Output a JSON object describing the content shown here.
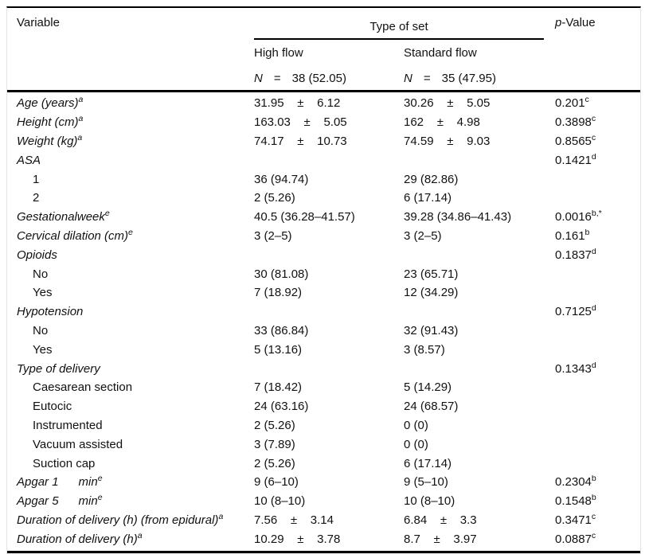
{
  "table": {
    "header": {
      "variable": "Variable",
      "group_title": "Type of set",
      "p_italic": "p",
      "p_rest": "-Value",
      "groups": [
        {
          "title": "High flow",
          "n_label": "N",
          "eq": "=",
          "count": "38 (52.05)"
        },
        {
          "title": "Standard flow",
          "n_label": "N",
          "eq": "=",
          "count": "35 (47.95)"
        }
      ]
    },
    "rows": [
      {
        "label": "Age (years)",
        "sup": "a",
        "italic": true,
        "indent": false,
        "high": "31.95    ±    6.12",
        "std": "30.26    ±    5.05",
        "p": "0.201",
        "psup": "c"
      },
      {
        "label": "Height (cm)",
        "sup": "a",
        "italic": true,
        "indent": false,
        "high": "163.03    ±    5.05",
        "std": "162    ±    4.98",
        "p": "0.3898",
        "psup": "c"
      },
      {
        "label": "Weight (kg)",
        "sup": "a",
        "italic": true,
        "indent": false,
        "high": "74.17    ±    10.73",
        "std": "74.59    ±    9.03",
        "p": "0.8565",
        "psup": "c"
      },
      {
        "label": "ASA",
        "sup": "",
        "italic": true,
        "indent": false,
        "high": "",
        "std": "",
        "p": "0.1421",
        "psup": "d"
      },
      {
        "label": "1",
        "sup": "",
        "italic": false,
        "indent": true,
        "high": "36 (94.74)",
        "std": "29 (82.86)",
        "p": "",
        "psup": ""
      },
      {
        "label": "2",
        "sup": "",
        "italic": false,
        "indent": true,
        "high": "2 (5.26)",
        "std": "6 (17.14)",
        "p": "",
        "psup": ""
      },
      {
        "label": "Gestationalweek",
        "sup": "e",
        "italic": true,
        "indent": false,
        "high": "40.5 (36.28–41.57)",
        "std": "39.28 (34.86–41.43)",
        "p": "0.0016",
        "psup": "b,*"
      },
      {
        "label": "Cervical dilation (cm)",
        "sup": "e",
        "italic": true,
        "indent": false,
        "high": "3 (2–5)",
        "std": "3 (2–5)",
        "p": "0.161",
        "psup": "b"
      },
      {
        "label": "Opioids",
        "sup": "",
        "italic": true,
        "indent": false,
        "high": "",
        "std": "",
        "p": "0.1837",
        "psup": "d"
      },
      {
        "label": "No",
        "sup": "",
        "italic": false,
        "indent": true,
        "high": "30 (81.08)",
        "std": "23 (65.71)",
        "p": "",
        "psup": ""
      },
      {
        "label": "Yes",
        "sup": "",
        "italic": false,
        "indent": true,
        "high": "7 (18.92)",
        "std": "12 (34.29)",
        "p": "",
        "psup": ""
      },
      {
        "label": "Hypotension",
        "sup": "",
        "italic": true,
        "indent": false,
        "high": "",
        "std": "",
        "p": "0.7125",
        "psup": "d"
      },
      {
        "label": "No",
        "sup": "",
        "italic": false,
        "indent": true,
        "high": "33 (86.84)",
        "std": "32 (91.43)",
        "p": "",
        "psup": ""
      },
      {
        "label": "Yes",
        "sup": "",
        "italic": false,
        "indent": true,
        "high": "5 (13.16)",
        "std": "3 (8.57)",
        "p": "",
        "psup": ""
      },
      {
        "label": "Type of delivery",
        "sup": "",
        "italic": true,
        "indent": false,
        "high": "",
        "std": "",
        "p": "0.1343",
        "psup": "d"
      },
      {
        "label": "Caesarean section",
        "sup": "",
        "italic": false,
        "indent": true,
        "high": "7 (18.42)",
        "std": "5 (14.29)",
        "p": "",
        "psup": ""
      },
      {
        "label": "Eutocic",
        "sup": "",
        "italic": false,
        "indent": true,
        "high": "24 (63.16)",
        "std": "24 (68.57)",
        "p": "",
        "psup": ""
      },
      {
        "label": "Instrumented",
        "sup": "",
        "italic": false,
        "indent": true,
        "high": "2 (5.26)",
        "std": "0 (0)",
        "p": "",
        "psup": ""
      },
      {
        "label": "Vacuum assisted",
        "sup": "",
        "italic": false,
        "indent": true,
        "high": "3 (7.89)",
        "std": "0 (0)",
        "p": "",
        "psup": ""
      },
      {
        "label": "Suction cap",
        "sup": "",
        "italic": false,
        "indent": true,
        "high": "2 (5.26)",
        "std": "6 (17.14)",
        "p": "",
        "psup": ""
      },
      {
        "label": "Apgar 1      min",
        "sup": "e",
        "italic": true,
        "indent": false,
        "high": "9 (6–10)",
        "std": "9 (5–10)",
        "p": "0.2304",
        "psup": "b"
      },
      {
        "label": "Apgar 5      min",
        "sup": "e",
        "italic": true,
        "indent": false,
        "high": "10 (8–10)",
        "std": "10 (8–10)",
        "p": "0.1548",
        "psup": "b"
      },
      {
        "label": "Duration of delivery (h) (from epidural)",
        "sup": "a",
        "italic": true,
        "indent": false,
        "high": "7.56    ±    3.14",
        "std": "6.84    ±    3.3",
        "p": "0.3471",
        "psup": "c"
      },
      {
        "label": "Duration of delivery (h)",
        "sup": "a",
        "italic": true,
        "indent": false,
        "high": "10.29    ±    3.78",
        "std": "8.7    ±    3.97",
        "p": "0.0887",
        "psup": "c"
      }
    ]
  }
}
